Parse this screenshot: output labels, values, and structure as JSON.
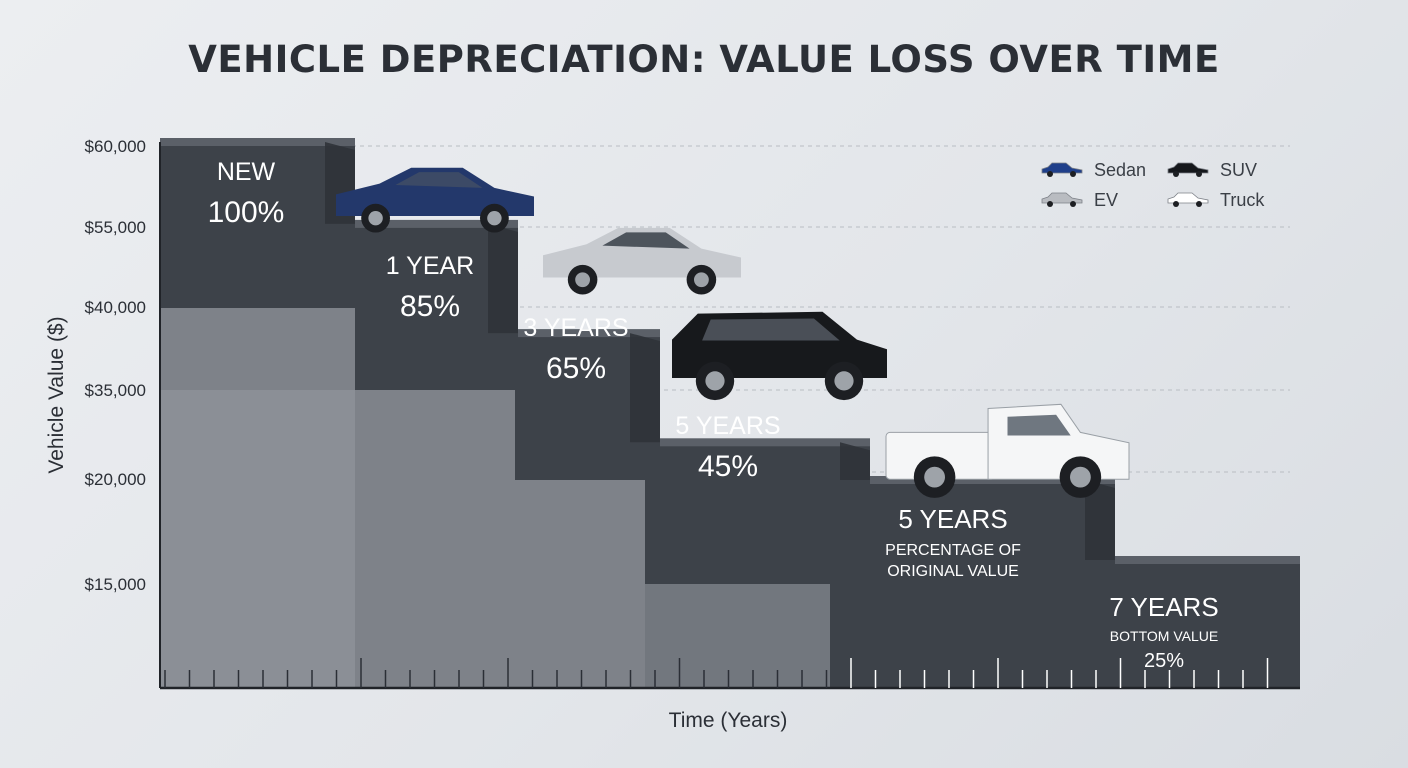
{
  "chart_data": {
    "type": "bar",
    "title": "VEHICLE DEPRECIATION: VALUE LOSS OVER TIME",
    "xlabel": "Time (Years)",
    "ylabel": "Vehicle Value ($)",
    "y_ticks": [
      "$60,000",
      "$55,000",
      "$40,000",
      "$35,000",
      "$20,000",
      "$15,000"
    ],
    "grid": true,
    "legend_position": "top-right",
    "legend": [
      {
        "name": "Sedan",
        "icon": "sedan-icon",
        "color": "#1f3f8a"
      },
      {
        "name": "SUV",
        "icon": "suv-icon",
        "color": "#15171b"
      },
      {
        "name": "EV",
        "icon": "ev-icon",
        "color": "#b9bcc1"
      },
      {
        "name": "Truck",
        "icon": "truck-icon",
        "color": "#ffffff"
      }
    ],
    "steps": [
      {
        "heading": "NEW",
        "value": "100%",
        "subtitle": "",
        "percent": 100,
        "car": "sedan"
      },
      {
        "heading": "1 YEAR",
        "value": "85%",
        "subtitle": "",
        "percent": 85,
        "car": "ev"
      },
      {
        "heading": "3 YEARS",
        "value": "65%",
        "subtitle": "",
        "percent": 65,
        "car": "suv"
      },
      {
        "heading": "5 YEARS",
        "value": "45%",
        "subtitle": "",
        "percent": 45,
        "car": "truck"
      },
      {
        "heading": "5 YEARS",
        "value": "",
        "subtitle": "PERCENTAGE OF ORIGINAL VALUE",
        "percent": 35,
        "car": ""
      },
      {
        "heading": "7 YEARS",
        "value": "25%",
        "subtitle": "BOTTOM VALUE",
        "percent": 25,
        "car": ""
      }
    ],
    "colors": {
      "step": "#3d4249",
      "step_top": "#5b6068",
      "step_side": "#2f3338",
      "overlay": "#b4b8be"
    }
  }
}
